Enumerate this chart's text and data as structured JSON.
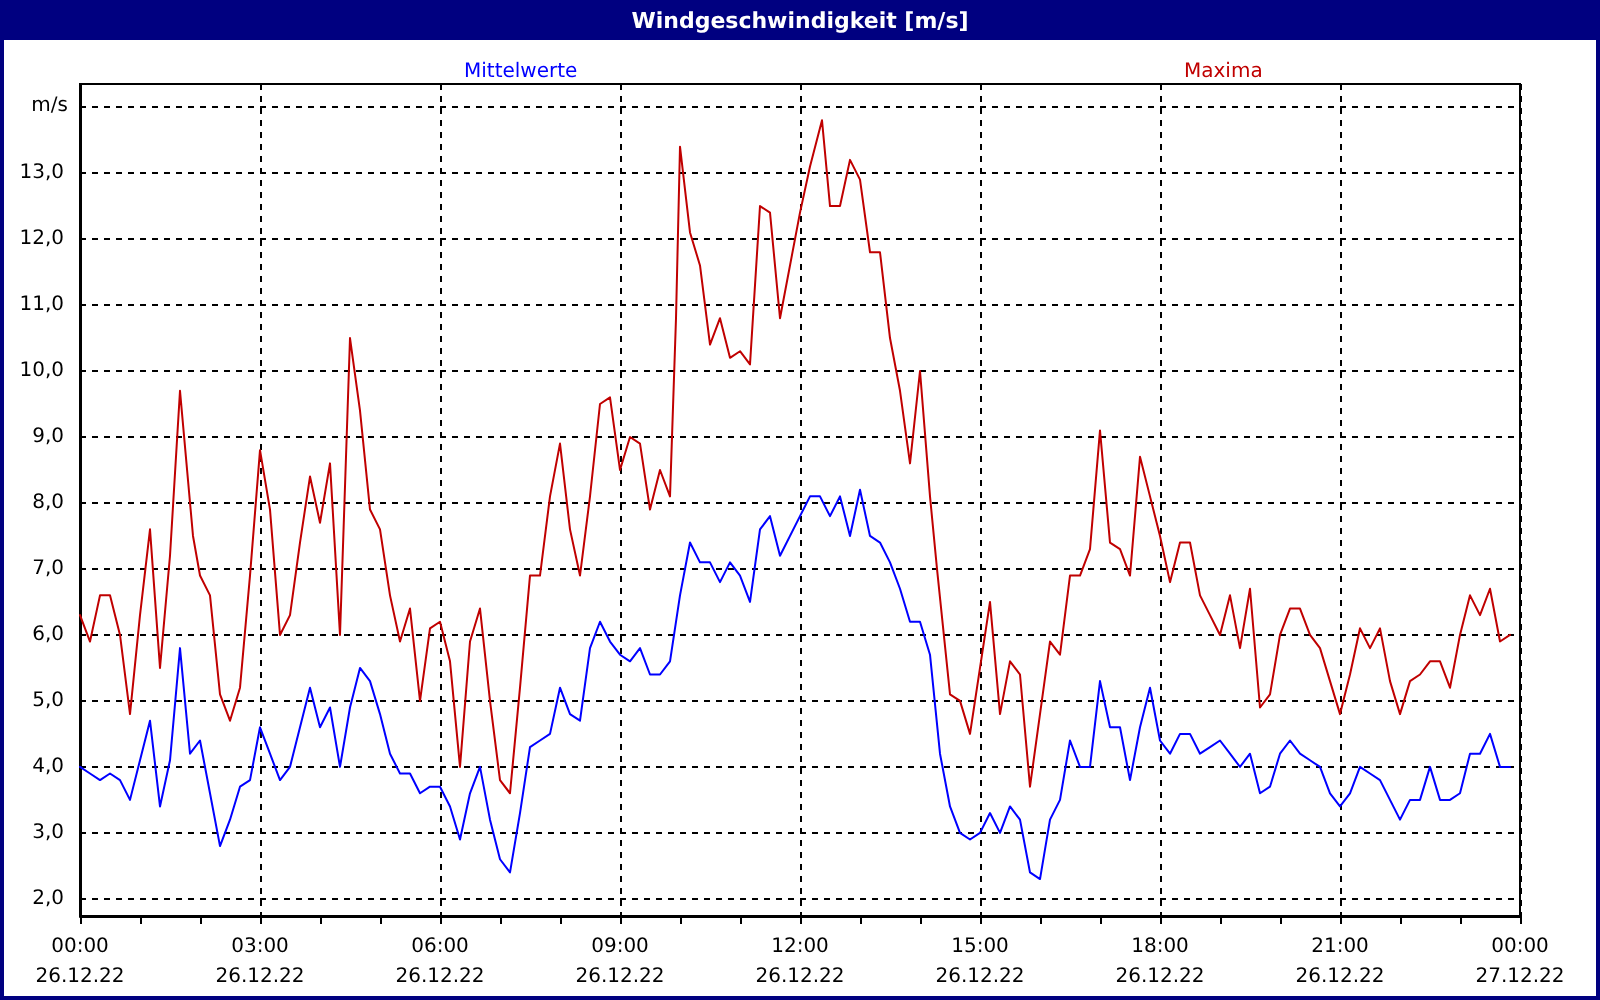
{
  "chart_data": {
    "type": "line",
    "title": "Windgeschwindigkeit [m/s]",
    "ylabel": "m/s",
    "xlim": [
      "--12-26T00:00",
      "--12-27T00:00"
    ],
    "ylim": [
      1.74,
      14.35
    ],
    "xticks": [
      {
        "value": "--12-26T00:00",
        "label": "00:00\n26.12.22"
      },
      {
        "value": "--12-26T01:00",
        "label": null
      },
      {
        "value": "--12-26T02:00",
        "label": null
      },
      {
        "value": "--12-26T03:00",
        "label": "03:00\n26.12.22"
      },
      {
        "value": "--12-26T04:00",
        "label": null
      },
      {
        "value": "--12-26T05:00",
        "label": null
      },
      {
        "value": "--12-26T06:00",
        "label": "06:00\n26.12.22"
      },
      {
        "value": "--12-26T07:00",
        "label": null
      },
      {
        "value": "--12-26T08:00",
        "label": null
      },
      {
        "value": "--12-26T09:00",
        "label": "09:00\n26.12.22"
      },
      {
        "value": "--12-26T10:00",
        "label": null
      },
      {
        "value": "--12-26T11:00",
        "label": null
      },
      {
        "value": "--12-26T12:00",
        "label": "12:00\n26.12.22"
      },
      {
        "value": "--12-26T13:00",
        "label": null
      },
      {
        "value": "--12-26T14:00",
        "label": null
      },
      {
        "value": "--12-26T15:00",
        "label": "15:00\n26.12.22"
      },
      {
        "value": "--12-26T16:00",
        "label": null
      },
      {
        "value": "--12-26T17:00",
        "label": null
      },
      {
        "value": "--12-26T18:00",
        "label": "18:00\n26.12.22"
      },
      {
        "value": "--12-26T19:00",
        "label": null
      },
      {
        "value": "--12-26T20:00",
        "label": null
      },
      {
        "value": "--12-26T21:00",
        "label": "21:00\n26.12.22"
      },
      {
        "value": "--12-26T22:00",
        "label": null
      },
      {
        "value": "--12-26T23:00",
        "label": null
      },
      {
        "value": "--12-27T00:00",
        "label": "00:00\n27.12.22"
      }
    ],
    "yticks": [
      {
        "value": 2,
        "label": "2,0"
      },
      {
        "value": 3,
        "label": "3,0"
      },
      {
        "value": 4,
        "label": "4,0"
      },
      {
        "value": 5,
        "label": "5,0"
      },
      {
        "value": 6,
        "label": "6,0"
      },
      {
        "value": 7,
        "label": "7,0"
      },
      {
        "value": 8,
        "label": "8,0"
      },
      {
        "value": 9,
        "label": "9,0"
      },
      {
        "value": 10,
        "label": "10,0"
      },
      {
        "value": 11,
        "label": "11,0"
      },
      {
        "value": 12,
        "label": "12,0"
      },
      {
        "value": 13,
        "label": "13,0"
      },
      {
        "value": 14,
        "label": null
      }
    ],
    "grid": true,
    "legend": "top",
    "marker": "none",
    "line_style": "solid",
    "series": [
      {
        "name": "Mittelwerte",
        "color": "#0000ff",
        "x": [
          "--12-26T00:00",
          "--12-26T00:10",
          "--12-26T00:20",
          "--12-26T00:30",
          "--12-26T00:40",
          "--12-26T00:50",
          "--12-26T01:00",
          "--12-26T01:10",
          "--12-26T01:20",
          "--12-26T01:30",
          "--12-26T01:40",
          "--12-26T01:50",
          "--12-26T02:00",
          "--12-26T02:10",
          "--12-26T02:20",
          "--12-26T02:30",
          "--12-26T02:40",
          "--12-26T02:50",
          "--12-26T03:00",
          "--12-26T03:10",
          "--12-26T03:20",
          "--12-26T03:30",
          "--12-26T03:40",
          "--12-26T03:50",
          "--12-26T04:00",
          "--12-26T04:10",
          "--12-26T04:20",
          "--12-26T04:30",
          "--12-26T04:40",
          "--12-26T04:50",
          "--12-26T05:00",
          "--12-26T05:10",
          "--12-26T05:20",
          "--12-26T05:30",
          "--12-26T05:40",
          "--12-26T05:50",
          "--12-26T06:00",
          "--12-26T06:10",
          "--12-26T06:20",
          "--12-26T06:30",
          "--12-26T06:40",
          "--12-26T06:50",
          "--12-26T07:00",
          "--12-26T07:10",
          "--12-26T07:20",
          "--12-26T07:30",
          "--12-26T07:40",
          "--12-26T07:50",
          "--12-26T08:00",
          "--12-26T08:10",
          "--12-26T08:20",
          "--12-26T08:30",
          "--12-26T08:40",
          "--12-26T08:50",
          "--12-26T09:00",
          "--12-26T09:10",
          "--12-26T09:20",
          "--12-26T09:30",
          "--12-26T09:40",
          "--12-26T09:50",
          "--12-26T10:00",
          "--12-26T10:10",
          "--12-26T10:20",
          "--12-26T10:30",
          "--12-26T10:40",
          "--12-26T10:50",
          "--12-26T11:00",
          "--12-26T11:10",
          "--12-26T11:20",
          "--12-26T11:30",
          "--12-26T11:40",
          "--12-26T12:00",
          "--12-26T12:10",
          "--12-26T12:20",
          "--12-26T12:30",
          "--12-26T12:40",
          "--12-26T12:50",
          "--12-26T13:00",
          "--12-26T13:10",
          "--12-26T13:20",
          "--12-26T13:30",
          "--12-26T13:40",
          "--12-26T13:50",
          "--12-26T14:00",
          "--12-26T14:10",
          "--12-26T14:20",
          "--12-26T14:30",
          "--12-26T14:40",
          "--12-26T14:50",
          "--12-26T15:00",
          "--12-26T15:10",
          "--12-26T15:20",
          "--12-26T15:30",
          "--12-26T15:40",
          "--12-26T15:50",
          "--12-26T16:00",
          "--12-26T16:10",
          "--12-26T16:20",
          "--12-26T16:30",
          "--12-26T16:40",
          "--12-26T16:50",
          "--12-26T17:00",
          "--12-26T17:10",
          "--12-26T17:20",
          "--12-26T17:30",
          "--12-26T17:40",
          "--12-26T17:50",
          "--12-26T18:00",
          "--12-26T18:10",
          "--12-26T18:20",
          "--12-26T18:30",
          "--12-26T18:40",
          "--12-26T18:50",
          "--12-26T19:00",
          "--12-26T19:10",
          "--12-26T19:20",
          "--12-26T19:30",
          "--12-26T19:40",
          "--12-26T19:50",
          "--12-26T20:00",
          "--12-26T20:10",
          "--12-26T20:20",
          "--12-26T20:30",
          "--12-26T20:40",
          "--12-26T20:50",
          "--12-26T21:00",
          "--12-26T21:10",
          "--12-26T21:20",
          "--12-26T21:30",
          "--12-26T21:40",
          "--12-26T21:50",
          "--12-26T22:00",
          "--12-26T22:10",
          "--12-26T22:20",
          "--12-26T22:30",
          "--12-26T22:40",
          "--12-26T22:50",
          "--12-26T23:00",
          "--12-26T23:10",
          "--12-26T23:20",
          "--12-26T23:30",
          "--12-26T23:40",
          "--12-26T23:50"
        ],
        "values": [
          4.0,
          3.9,
          3.8,
          3.9,
          3.8,
          3.5,
          4.1,
          4.7,
          3.4,
          4.1,
          5.8,
          4.2,
          4.4,
          3.6,
          2.8,
          3.2,
          3.7,
          3.8,
          4.6,
          4.2,
          3.8,
          4.0,
          4.6,
          5.2,
          4.6,
          4.9,
          4.0,
          4.9,
          5.5,
          5.3,
          4.8,
          4.2,
          3.9,
          3.9,
          3.6,
          3.7,
          3.7,
          3.4,
          2.9,
          3.6,
          4.0,
          3.2,
          2.6,
          2.4,
          3.3,
          4.3,
          4.4,
          4.5,
          5.2,
          4.8,
          4.7,
          5.8,
          6.2,
          5.9,
          5.7,
          5.6,
          5.8,
          5.4,
          5.4,
          5.6,
          6.6,
          7.4,
          7.1,
          7.1,
          6.8,
          7.1,
          6.9,
          6.5,
          7.6,
          7.8,
          7.2,
          7.8,
          8.1,
          8.1,
          7.8,
          8.1,
          7.5,
          8.2,
          7.5,
          7.4,
          7.1,
          6.7,
          6.2,
          6.2,
          5.7,
          4.2,
          3.4,
          3.0,
          2.9,
          3.0,
          3.3,
          3.0,
          3.4,
          3.2,
          2.4,
          2.3,
          3.2,
          3.5,
          4.4,
          4.0,
          4.0,
          5.3,
          4.6,
          4.6,
          3.8,
          4.6,
          5.2,
          4.4,
          4.2,
          4.5,
          4.5,
          4.2,
          4.3,
          4.4,
          4.2,
          4.0,
          4.2,
          3.6,
          3.7,
          4.2,
          4.4,
          4.2,
          4.1,
          4.0,
          3.6,
          3.4,
          3.6,
          4.0,
          3.9,
          3.8,
          3.5,
          3.2,
          3.5,
          3.5,
          4.0,
          3.5,
          3.5,
          3.6,
          4.2,
          4.2,
          4.5,
          4.0,
          4.0
        ]
      },
      {
        "name": "Maxima",
        "color": "#c00000",
        "x": [
          "--12-26T00:00",
          "--12-26T00:10",
          "--12-26T00:20",
          "--12-26T00:30",
          "--12-26T00:40",
          "--12-26T00:50",
          "--12-26T01:00",
          "--12-26T01:10",
          "--12-26T01:20",
          "--12-26T01:30",
          "--12-26T01:40",
          "--12-26T01:53",
          "--12-26T02:00",
          "--12-26T02:10",
          "--12-26T02:20",
          "--12-26T02:30",
          "--12-26T02:40",
          "--12-26T02:50",
          "--12-26T03:00",
          "--12-26T03:10",
          "--12-26T03:20",
          "--12-26T03:30",
          "--12-26T03:40",
          "--12-26T03:50",
          "--12-26T04:00",
          "--12-26T04:10",
          "--12-26T04:20",
          "--12-26T04:30",
          "--12-26T04:40",
          "--12-26T04:50",
          "--12-26T05:00",
          "--12-26T05:10",
          "--12-26T05:20",
          "--12-26T05:30",
          "--12-26T05:40",
          "--12-26T05:50",
          "--12-26T06:00",
          "--12-26T06:10",
          "--12-26T06:20",
          "--12-26T06:30",
          "--12-26T06:40",
          "--12-26T06:50",
          "--12-26T07:00",
          "--12-26T07:10",
          "--12-26T07:20",
          "--12-26T07:30",
          "--12-26T07:40",
          "--12-26T07:50",
          "--12-26T08:00",
          "--12-26T08:10",
          "--12-26T08:20",
          "--12-26T08:30",
          "--12-26T08:40",
          "--12-26T08:50",
          "--12-26T09:00",
          "--12-26T09:10",
          "--12-26T09:20",
          "--12-26T09:30",
          "--12-26T09:40",
          "--12-26T09:50",
          "--12-26T09:56",
          "--12-26T10:00",
          "--12-26T10:10",
          "--12-26T10:20",
          "--12-26T10:30",
          "--12-26T10:40",
          "--12-26T10:50",
          "--12-26T11:00",
          "--12-26T11:10",
          "--12-26T11:20",
          "--12-26T11:30",
          "--12-26T11:40",
          "--12-26T12:00",
          "--12-26T12:10",
          "--12-26T12:22",
          "--12-26T12:30",
          "--12-26T12:40",
          "--12-26T12:50",
          "--12-26T13:00",
          "--12-26T13:10",
          "--12-26T13:20",
          "--12-26T13:30",
          "--12-26T13:40",
          "--12-26T13:50",
          "--12-26T14:00",
          "--12-26T14:10",
          "--12-26T14:17",
          "--12-26T14:30",
          "--12-26T14:40",
          "--12-26T14:50",
          "--12-26T15:00",
          "--12-26T15:10",
          "--12-26T15:20",
          "--12-26T15:30",
          "--12-26T15:40",
          "--12-26T15:50",
          "--12-26T16:00",
          "--12-26T16:10",
          "--12-26T16:20",
          "--12-26T16:30",
          "--12-26T16:40",
          "--12-26T16:50",
          "--12-26T17:00",
          "--12-26T17:10",
          "--12-26T17:20",
          "--12-26T17:30",
          "--12-26T17:40",
          "--12-26T17:50",
          "--12-26T18:00",
          "--12-26T18:10",
          "--12-26T18:20",
          "--12-26T18:30",
          "--12-26T18:40",
          "--12-26T18:50",
          "--12-26T19:00",
          "--12-26T19:10",
          "--12-26T19:20",
          "--12-26T19:30",
          "--12-26T19:40",
          "--12-26T19:50",
          "--12-26T20:00",
          "--12-26T20:10",
          "--12-26T20:20",
          "--12-26T20:30",
          "--12-26T20:40",
          "--12-26T20:50",
          "--12-26T21:00",
          "--12-26T21:10",
          "--12-26T21:20",
          "--12-26T21:30",
          "--12-26T21:40",
          "--12-26T21:50",
          "--12-26T22:00",
          "--12-26T22:10",
          "--12-26T22:20",
          "--12-26T22:30",
          "--12-26T22:40",
          "--12-26T22:50",
          "--12-26T23:00",
          "--12-26T23:10",
          "--12-26T23:20",
          "--12-26T23:30",
          "--12-26T23:40",
          "--12-26T23:50"
        ],
        "values": [
          6.3,
          5.9,
          6.6,
          6.6,
          6.0,
          4.8,
          6.3,
          7.6,
          5.5,
          7.2,
          9.7,
          7.5,
          6.9,
          6.6,
          5.1,
          4.7,
          5.2,
          6.9,
          8.8,
          7.9,
          6.0,
          6.3,
          7.4,
          8.4,
          7.7,
          8.6,
          6.0,
          10.5,
          9.4,
          7.9,
          7.6,
          6.6,
          5.9,
          6.4,
          5.0,
          6.1,
          6.2,
          5.6,
          4.0,
          5.9,
          6.4,
          5.0,
          3.8,
          3.6,
          5.2,
          6.9,
          6.9,
          8.1,
          8.9,
          7.6,
          6.9,
          8.1,
          9.5,
          9.6,
          8.5,
          9.0,
          8.9,
          7.9,
          8.5,
          8.1,
          10.8,
          13.4,
          12.1,
          11.6,
          10.4,
          10.8,
          10.2,
          10.3,
          10.1,
          12.5,
          12.4,
          10.8,
          12.4,
          13.1,
          13.8,
          12.5,
          12.5,
          13.2,
          12.9,
          11.8,
          11.8,
          10.5,
          9.7,
          8.6,
          10.0,
          8.1,
          7.0,
          5.1,
          5.0,
          4.5,
          5.5,
          6.5,
          4.8,
          5.6,
          5.4,
          3.7,
          4.8,
          5.9,
          5.7,
          6.9,
          6.9,
          7.3,
          9.1,
          7.4,
          7.3,
          6.9,
          8.7,
          8.1,
          7.5,
          6.8,
          7.4,
          7.4,
          6.6,
          6.3,
          6.0,
          6.6,
          5.8,
          6.7,
          4.9,
          5.1,
          6.0,
          6.4,
          6.4,
          6.0,
          5.8,
          5.3,
          4.8,
          5.4,
          6.1,
          5.8,
          6.1,
          5.3,
          4.8,
          5.3,
          5.4,
          5.6,
          5.6,
          5.2,
          6.0,
          6.6,
          6.3,
          6.7,
          5.9,
          6.0
        ]
      }
    ]
  }
}
